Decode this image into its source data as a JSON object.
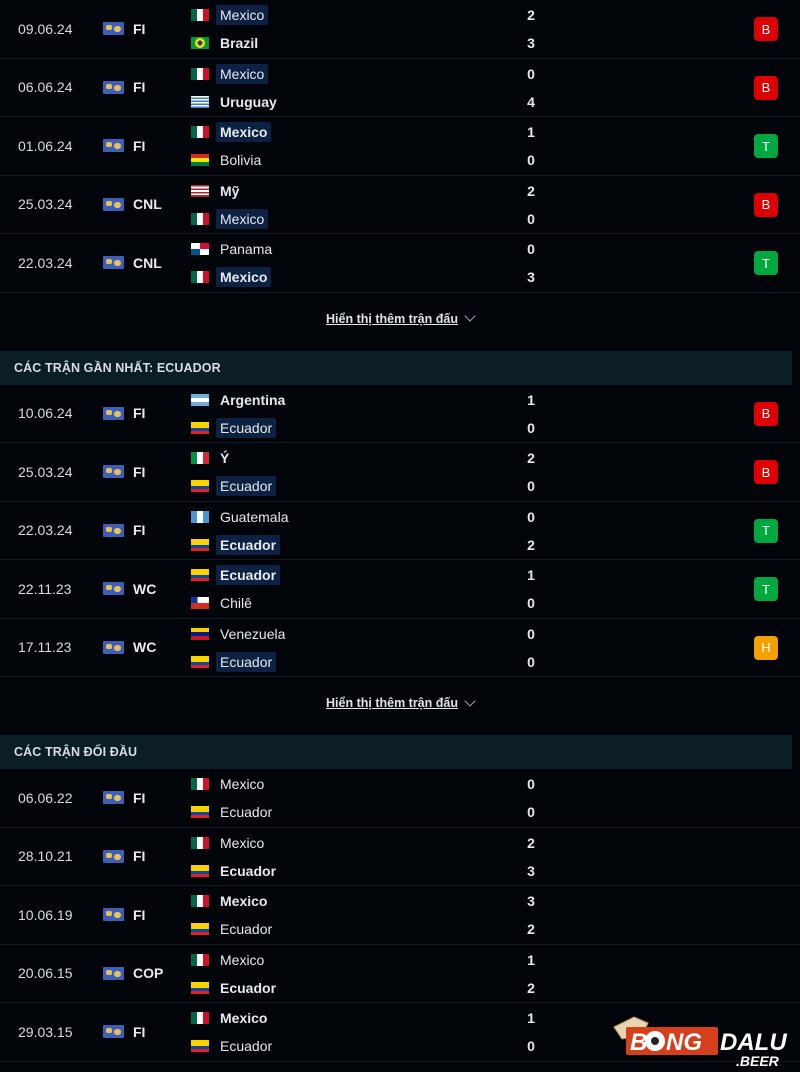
{
  "show_more_label": "Hiển thị thêm trận đấu",
  "result_colors": {
    "B": "#dc0000",
    "T": "#00a83f",
    "H": "#f3a000"
  },
  "sections": [
    {
      "title": "",
      "matches": [
        {
          "date": "09.06.24",
          "league": "FI",
          "home": {
            "name": "Mexico",
            "flag": "mx",
            "score": "2",
            "bold": false,
            "highlight": true
          },
          "away": {
            "name": "Brazil",
            "flag": "br",
            "score": "3",
            "bold": true,
            "highlight": false
          },
          "result": "B"
        },
        {
          "date": "06.06.24",
          "league": "FI",
          "home": {
            "name": "Mexico",
            "flag": "mx",
            "score": "0",
            "bold": false,
            "highlight": true
          },
          "away": {
            "name": "Uruguay",
            "flag": "uy",
            "score": "4",
            "bold": true,
            "highlight": false
          },
          "result": "B"
        },
        {
          "date": "01.06.24",
          "league": "FI",
          "home": {
            "name": "Mexico",
            "flag": "mx",
            "score": "1",
            "bold": true,
            "highlight": true
          },
          "away": {
            "name": "Bolivia",
            "flag": "bo",
            "score": "0",
            "bold": false,
            "highlight": false
          },
          "result": "T"
        },
        {
          "date": "25.03.24",
          "league": "CNL",
          "home": {
            "name": "Mỹ",
            "flag": "us",
            "score": "2",
            "bold": true,
            "highlight": false
          },
          "away": {
            "name": "Mexico",
            "flag": "mx",
            "score": "0",
            "bold": false,
            "highlight": true
          },
          "result": "B"
        },
        {
          "date": "22.03.24",
          "league": "CNL",
          "home": {
            "name": "Panama",
            "flag": "pa",
            "score": "0",
            "bold": false,
            "highlight": false
          },
          "away": {
            "name": "Mexico",
            "flag": "mx",
            "score": "3",
            "bold": true,
            "highlight": true
          },
          "result": "T"
        }
      ],
      "show_more": true
    },
    {
      "title": "CÁC TRẬN GẦN NHẤT: ECUADOR",
      "matches": [
        {
          "date": "10.06.24",
          "league": "FI",
          "home": {
            "name": "Argentina",
            "flag": "ar",
            "score": "1",
            "bold": true,
            "highlight": false
          },
          "away": {
            "name": "Ecuador",
            "flag": "ec",
            "score": "0",
            "bold": false,
            "highlight": true
          },
          "result": "B"
        },
        {
          "date": "25.03.24",
          "league": "FI",
          "home": {
            "name": "Ý",
            "flag": "it",
            "score": "2",
            "bold": true,
            "highlight": false
          },
          "away": {
            "name": "Ecuador",
            "flag": "ec",
            "score": "0",
            "bold": false,
            "highlight": true
          },
          "result": "B"
        },
        {
          "date": "22.03.24",
          "league": "FI",
          "home": {
            "name": "Guatemala",
            "flag": "gt",
            "score": "0",
            "bold": false,
            "highlight": false
          },
          "away": {
            "name": "Ecuador",
            "flag": "ec",
            "score": "2",
            "bold": true,
            "highlight": true
          },
          "result": "T"
        },
        {
          "date": "22.11.23",
          "league": "WC",
          "home": {
            "name": "Ecuador",
            "flag": "ec",
            "score": "1",
            "bold": true,
            "highlight": true
          },
          "away": {
            "name": "Chilê",
            "flag": "cl",
            "score": "0",
            "bold": false,
            "highlight": false
          },
          "result": "T"
        },
        {
          "date": "17.11.23",
          "league": "WC",
          "home": {
            "name": "Venezuela",
            "flag": "ve",
            "score": "0",
            "bold": false,
            "highlight": false
          },
          "away": {
            "name": "Ecuador",
            "flag": "ec",
            "score": "0",
            "bold": false,
            "highlight": true
          },
          "result": "H"
        }
      ],
      "show_more": true
    },
    {
      "title": "CÁC TRẬN ĐỐI ĐẦU",
      "matches": [
        {
          "date": "06.06.22",
          "league": "FI",
          "home": {
            "name": "Mexico",
            "flag": "mx",
            "score": "0",
            "bold": false,
            "highlight": false
          },
          "away": {
            "name": "Ecuador",
            "flag": "ec",
            "score": "0",
            "bold": false,
            "highlight": false
          },
          "result": ""
        },
        {
          "date": "28.10.21",
          "league": "FI",
          "home": {
            "name": "Mexico",
            "flag": "mx",
            "score": "2",
            "bold": false,
            "highlight": false
          },
          "away": {
            "name": "Ecuador",
            "flag": "ec",
            "score": "3",
            "bold": true,
            "highlight": false
          },
          "result": ""
        },
        {
          "date": "10.06.19",
          "league": "FI",
          "home": {
            "name": "Mexico",
            "flag": "mx",
            "score": "3",
            "bold": true,
            "highlight": false
          },
          "away": {
            "name": "Ecuador",
            "flag": "ec",
            "score": "2",
            "bold": false,
            "highlight": false
          },
          "result": ""
        },
        {
          "date": "20.06.15",
          "league": "COP",
          "home": {
            "name": "Mexico",
            "flag": "mx",
            "score": "1",
            "bold": false,
            "highlight": false
          },
          "away": {
            "name": "Ecuador",
            "flag": "ec",
            "score": "2",
            "bold": true,
            "highlight": false
          },
          "result": ""
        },
        {
          "date": "29.03.15",
          "league": "FI",
          "home": {
            "name": "Mexico",
            "flag": "mx",
            "score": "1",
            "bold": true,
            "highlight": false
          },
          "away": {
            "name": "Ecuador",
            "flag": "ec",
            "score": "0",
            "bold": false,
            "highlight": false
          },
          "result": ""
        }
      ],
      "show_more": false
    }
  ],
  "watermark": {
    "text": "BONGDALU.BEER"
  }
}
